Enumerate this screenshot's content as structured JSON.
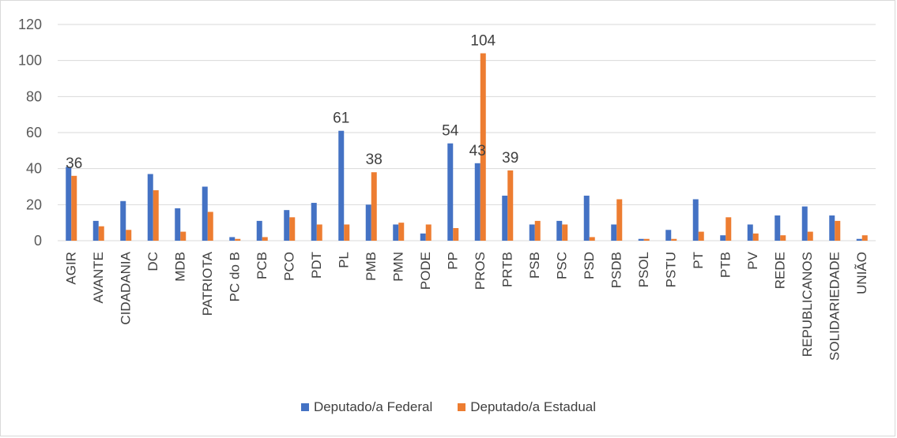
{
  "colors": {
    "federal": "#4472C4",
    "estadual": "#ED7D31",
    "grid": "#d9d9d9"
  },
  "chart_data": {
    "type": "bar",
    "title": "",
    "xlabel": "",
    "ylabel": "",
    "ylim": [
      0,
      120
    ],
    "yticks": [
      0,
      20,
      40,
      60,
      80,
      100,
      120
    ],
    "grid": true,
    "legend_position": "bottom",
    "categories": [
      "AGIR",
      "AVANTE",
      "CIDADANIA",
      "DC",
      "MDB",
      "PATRIOTA",
      "PC do B",
      "PCB",
      "PCO",
      "PDT",
      "PL",
      "PMB",
      "PMN",
      "PODE",
      "PP",
      "PROS",
      "PRTB",
      "PSB",
      "PSC",
      "PSD",
      "PSDB",
      "PSOL",
      "PSTU",
      "PT",
      "PTB",
      "PV",
      "REDE",
      "REPUBLICANOS",
      "SOLIDARIEDADE",
      "UNIÃO"
    ],
    "series": [
      {
        "name": "Deputado/a Federal",
        "values": [
          41,
          11,
          22,
          37,
          18,
          30,
          2,
          11,
          17,
          21,
          61,
          20,
          9,
          4,
          54,
          43,
          25,
          9,
          11,
          25,
          9,
          1,
          6,
          23,
          3,
          9,
          14,
          19,
          14,
          1
        ]
      },
      {
        "name": "Deputado/a Estadual",
        "values": [
          36,
          8,
          6,
          28,
          5,
          16,
          1,
          2,
          13,
          9,
          9,
          38,
          10,
          9,
          7,
          104,
          39,
          11,
          9,
          2,
          23,
          1,
          1,
          5,
          13,
          4,
          3,
          5,
          11,
          3
        ]
      }
    ],
    "data_labels": [
      {
        "category": "AGIR",
        "series": 1,
        "text": "36"
      },
      {
        "category": "PL",
        "series": 0,
        "text": "61"
      },
      {
        "category": "PMB",
        "series": 1,
        "text": "38"
      },
      {
        "category": "PP",
        "series": 0,
        "text": "54"
      },
      {
        "category": "PROS",
        "series": 0,
        "text": "43"
      },
      {
        "category": "PROS",
        "series": 1,
        "text": "104"
      },
      {
        "category": "PRTB",
        "series": 1,
        "text": "39"
      }
    ]
  }
}
